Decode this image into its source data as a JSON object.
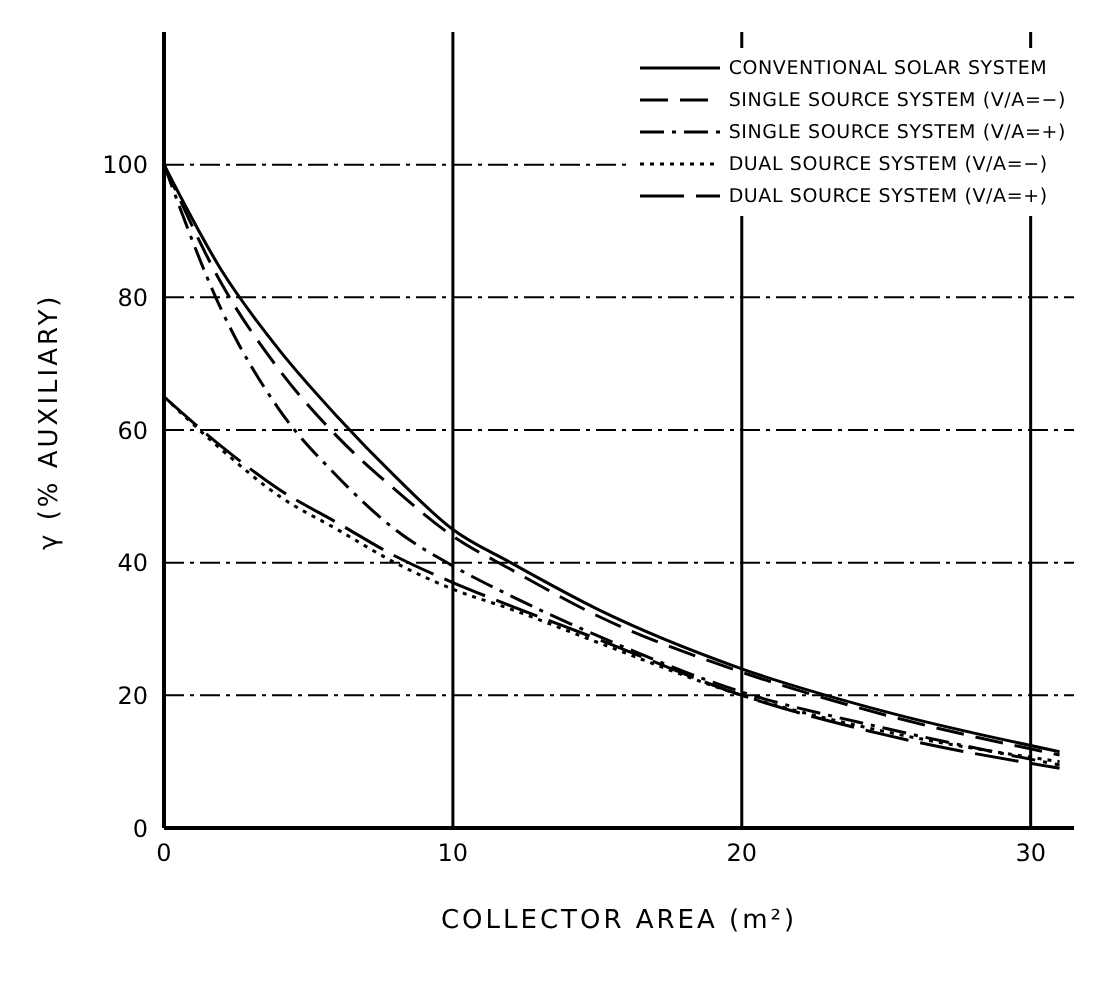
{
  "chart_data": {
    "type": "line",
    "xlabel": "COLLECTOR AREA (m²)",
    "ylabel": "γ (% AUXILIARY)",
    "x": [
      0,
      2,
      4,
      6,
      8,
      10,
      12,
      15,
      20,
      25,
      31
    ],
    "series": [
      {
        "name": "CONVENTIONAL SOLAR SYSTEM",
        "color": "#000000",
        "line_style": "solid",
        "values": [
          100,
          84,
          72,
          62,
          53,
          45,
          40,
          33,
          24,
          17.5,
          11.5
        ]
      },
      {
        "name": "SINGLE SOURCE SYSTEM (V/A=−)",
        "color": "#000000",
        "line_style": "dashed",
        "values": [
          100,
          82,
          69,
          59,
          51,
          44,
          39,
          32,
          23.5,
          17,
          11
        ]
      },
      {
        "name": "SINGLE SOURCE SYSTEM (V/A=+)",
        "color": "#000000",
        "line_style": "dashdot",
        "values": [
          100,
          78,
          63,
          53,
          45,
          39.5,
          35,
          29,
          20.5,
          15,
          9.5
        ]
      },
      {
        "name": "DUAL SOURCE SYSTEM (V/A=−)",
        "color": "#000000",
        "line_style": "dotted",
        "values": [
          65,
          57,
          50,
          45,
          40,
          36,
          33,
          28,
          20,
          14.5,
          10
        ]
      },
      {
        "name": "DUAL SOURCE SYSTEM (V/A=+)",
        "color": "#000000",
        "line_style": "longdash",
        "values": [
          65,
          57.5,
          51,
          46,
          41,
          37,
          33.5,
          28.5,
          20,
          14,
          9
        ]
      }
    ],
    "xlim": [
      0,
      31.5
    ],
    "xticks": [
      0,
      10,
      20,
      30
    ],
    "ylim": [
      0,
      120
    ],
    "yticks": [
      0,
      20,
      40,
      60,
      80,
      100
    ],
    "grid": true,
    "legend": "top right",
    "marker": "none"
  }
}
